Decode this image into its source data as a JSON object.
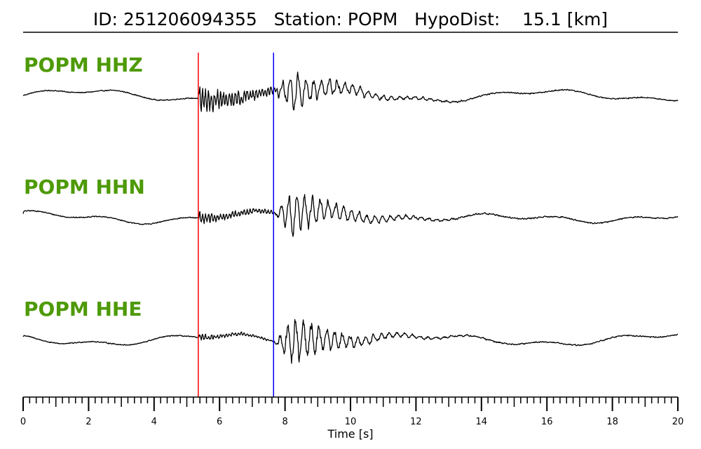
{
  "chart_data": {
    "type": "line",
    "title": "ID: 251206094355   Station: POPM   HypoDist:    15.1 [km]",
    "title_parts": {
      "id": "ID: 251206094355",
      "station": "Station: POPM",
      "distance": "HypoDist:    15.1 [km]"
    },
    "xlabel": "Time [s]",
    "xlim": [
      0,
      20
    ],
    "x_ticks": [
      0,
      2,
      4,
      6,
      8,
      10,
      12,
      14,
      16,
      18,
      20
    ],
    "x_minor_step": 0.2,
    "grid": false,
    "series": [
      {
        "name": "POPM HHZ",
        "label_color": "#4e9a06",
        "p_amp": 0.55,
        "s_amp": 0.75,
        "low_amp": 0.12,
        "coda_low": 0.3
      },
      {
        "name": "POPM HHN",
        "label_color": "#4e9a06",
        "p_amp": 0.22,
        "s_amp": 0.8,
        "low_amp": 0.1,
        "coda_low": 0.55
      },
      {
        "name": "POPM HHE",
        "label_color": "#4e9a06",
        "p_amp": 0.12,
        "s_amp": 0.9,
        "low_amp": 0.1,
        "coda_low": 0.35
      }
    ],
    "picks": [
      {
        "phase": "P",
        "time": 5.35,
        "color": "#ff0000"
      },
      {
        "phase": "S",
        "time": 7.65,
        "color": "#0000ff"
      }
    ],
    "trace_color": "#000000"
  }
}
